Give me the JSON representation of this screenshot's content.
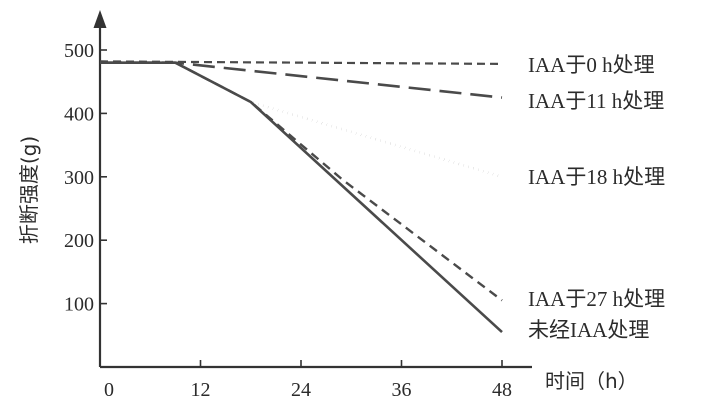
{
  "chart_data": {
    "type": "line",
    "xlabel": "时间（h）",
    "ylabel": "折断强度(g)",
    "xlim": [
      0,
      48
    ],
    "ylim": [
      0,
      500
    ],
    "x_ticks": [
      0,
      12,
      24,
      36,
      48
    ],
    "y_ticks": [
      100,
      200,
      300,
      400,
      500
    ],
    "x_tick_labels": [
      "0",
      "12",
      "24",
      "36",
      "48"
    ],
    "y_tick_labels": [
      "100",
      "200",
      "300",
      "400",
      "500"
    ],
    "grid": false,
    "legend": "line-end labels at right",
    "series": [
      {
        "name": "IAA于0 h处理",
        "style": "short-dash",
        "points": [
          [
            0,
            482
          ],
          [
            48,
            478
          ]
        ]
      },
      {
        "name": "IAA于11 h处理",
        "style": "long-dash",
        "points": [
          [
            0,
            480
          ],
          [
            9,
            480
          ],
          [
            48,
            425
          ]
        ]
      },
      {
        "name": "IAA于18 h处理",
        "style": "dotted",
        "points": [
          [
            0,
            480
          ],
          [
            9,
            480
          ],
          [
            18,
            418
          ],
          [
            48,
            300
          ]
        ]
      },
      {
        "name": "IAA于27 h处理",
        "style": "dashed",
        "points": [
          [
            0,
            480
          ],
          [
            9,
            480
          ],
          [
            18,
            418
          ],
          [
            29,
            295
          ],
          [
            48,
            105
          ]
        ]
      },
      {
        "name": "未经IAA处理",
        "style": "solid",
        "points": [
          [
            0,
            480
          ],
          [
            9,
            480
          ],
          [
            18,
            418
          ],
          [
            48,
            55
          ]
        ]
      }
    ],
    "colors": {
      "axis": "#333333",
      "line": "#4a4a4a",
      "text": "#2b2b2b"
    }
  }
}
